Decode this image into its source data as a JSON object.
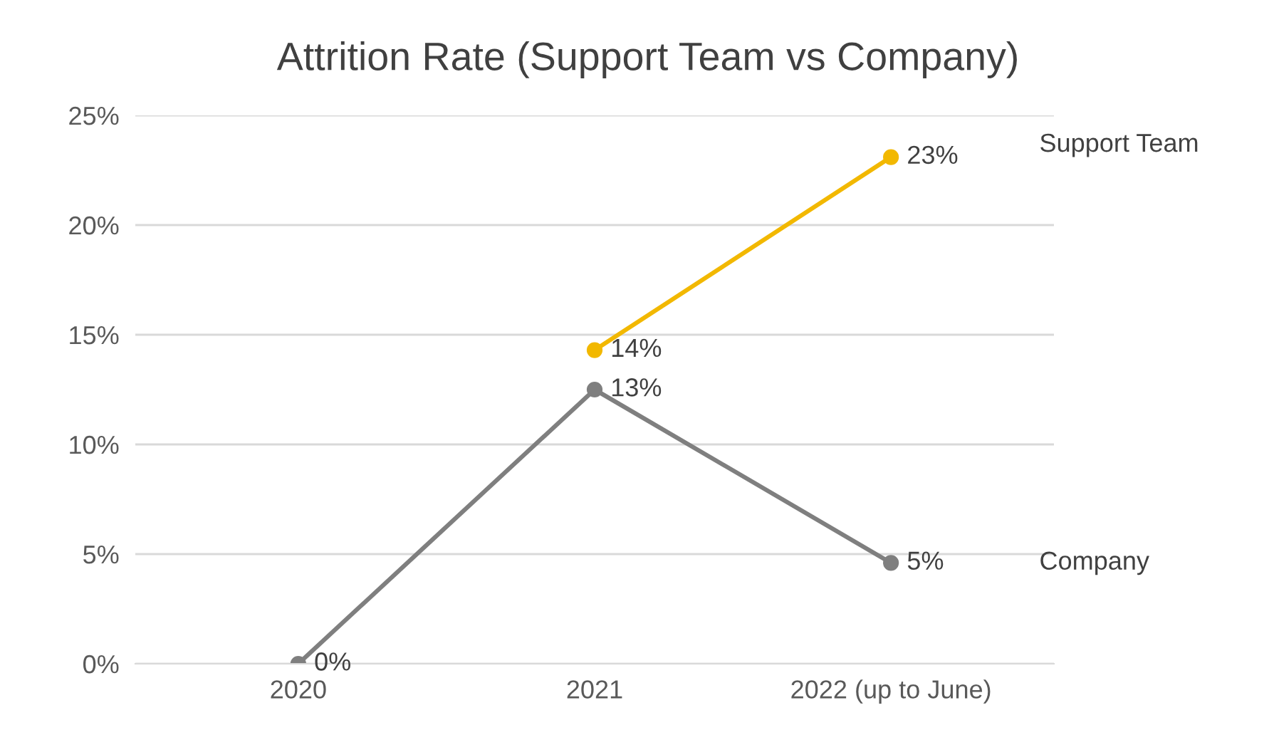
{
  "chart_data": {
    "type": "line",
    "title": "Attrition Rate (Support Team vs Company)",
    "categories": [
      "2020",
      "2021",
      "2022 (up to June)"
    ],
    "series": [
      {
        "name": "Support Team",
        "color": "#f2b800",
        "values": [
          null,
          14.3,
          23.1
        ],
        "value_labels": [
          null,
          "14%",
          "23%"
        ]
      },
      {
        "name": "Company",
        "color": "#7f7f7f",
        "values": [
          0,
          12.5,
          4.6
        ],
        "value_labels": [
          "0%",
          "13%",
          "5%"
        ]
      }
    ],
    "ylim": [
      0,
      25
    ],
    "yticks": [
      {
        "value": 0,
        "label": "0%"
      },
      {
        "value": 5,
        "label": "5%"
      },
      {
        "value": 10,
        "label": "10%"
      },
      {
        "value": 15,
        "label": "15%"
      },
      {
        "value": 20,
        "label": "20%"
      },
      {
        "value": 25,
        "label": "25%"
      }
    ],
    "grid": "y",
    "legend": false,
    "marker": "circle",
    "line_style": "solid"
  }
}
